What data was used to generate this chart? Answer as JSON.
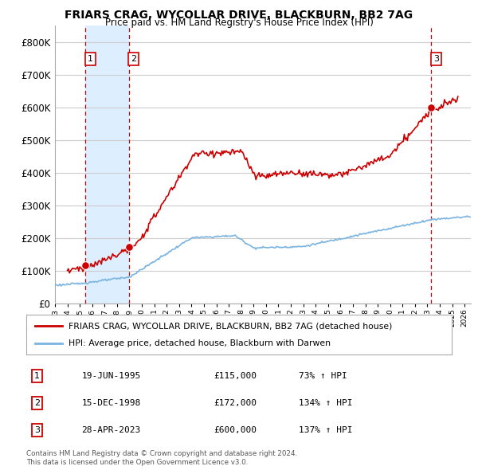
{
  "title": "FRIARS CRAG, WYCOLLAR DRIVE, BLACKBURN, BB2 7AG",
  "subtitle": "Price paid vs. HM Land Registry's House Price Index (HPI)",
  "legend_line1": "FRIARS CRAG, WYCOLLAR DRIVE, BLACKBURN, BB2 7AG (detached house)",
  "legend_line2": "HPI: Average price, detached house, Blackburn with Darwen",
  "transactions": [
    {
      "num": 1,
      "date": "19-JUN-1995",
      "price": 115000,
      "hpi_pct": "73%",
      "x_year": 1995.47
    },
    {
      "num": 2,
      "date": "15-DEC-1998",
      "price": 172000,
      "hpi_pct": "134%",
      "x_year": 1998.96
    },
    {
      "num": 3,
      "date": "28-APR-2023",
      "price": 600000,
      "hpi_pct": "137%",
      "x_year": 2023.32
    }
  ],
  "footnote1": "Contains HM Land Registry data © Crown copyright and database right 2024.",
  "footnote2": "This data is licensed under the Open Government Licence v3.0.",
  "hpi_color": "#7ab4e0",
  "price_color": "#cc0000",
  "marker_color": "#cc0000",
  "shade_color": "#ddeeff",
  "bg_color": "#ffffff",
  "ylim": [
    0,
    850000
  ],
  "xlim_start": 1993.0,
  "xlim_end": 2026.5,
  "yticks": [
    0,
    100000,
    200000,
    300000,
    400000,
    500000,
    600000,
    700000,
    800000
  ]
}
